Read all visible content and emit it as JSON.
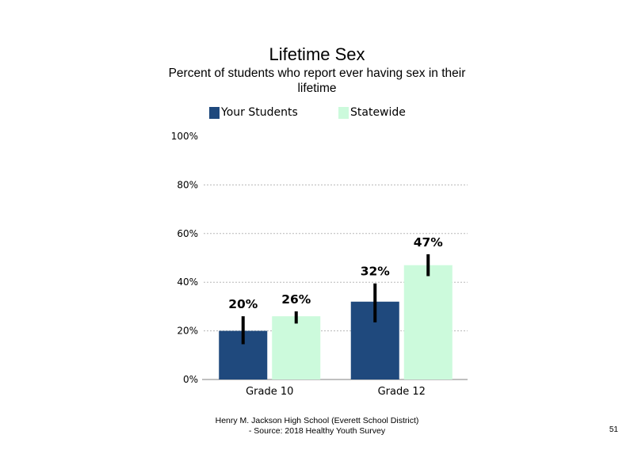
{
  "slide": {
    "footer_line1": "Henry M. Jackson High School (Everett School District)",
    "footer_line2": "- Source: 2018 Healthy Youth Survey",
    "page_number": "51"
  },
  "chart_data": {
    "type": "bar",
    "title": "Lifetime Sex",
    "subtitle": "Percent of students who report ever having sex in their lifetime",
    "categories": [
      "Grade 10",
      "Grade 12"
    ],
    "series": [
      {
        "name": "Your Students",
        "color": "#1f497d",
        "values": [
          20,
          32
        ],
        "labels": [
          "20%",
          "32%"
        ],
        "error": [
          [
            14.5,
            26
          ],
          [
            23.5,
            39.5
          ]
        ]
      },
      {
        "name": "Statewide",
        "color": "#ccfadc",
        "values": [
          26,
          47
        ],
        "labels": [
          "26%",
          "47%"
        ],
        "error": [
          [
            23,
            28
          ],
          [
            42.5,
            51.5
          ]
        ]
      }
    ],
    "ylim": [
      0,
      100
    ],
    "yticks": [
      0,
      20,
      40,
      60,
      80,
      100
    ],
    "ytick_labels": [
      "0%",
      "20%",
      "40%",
      "60%",
      "80%",
      "100%"
    ],
    "gridlines": true,
    "legend_position": "top"
  }
}
